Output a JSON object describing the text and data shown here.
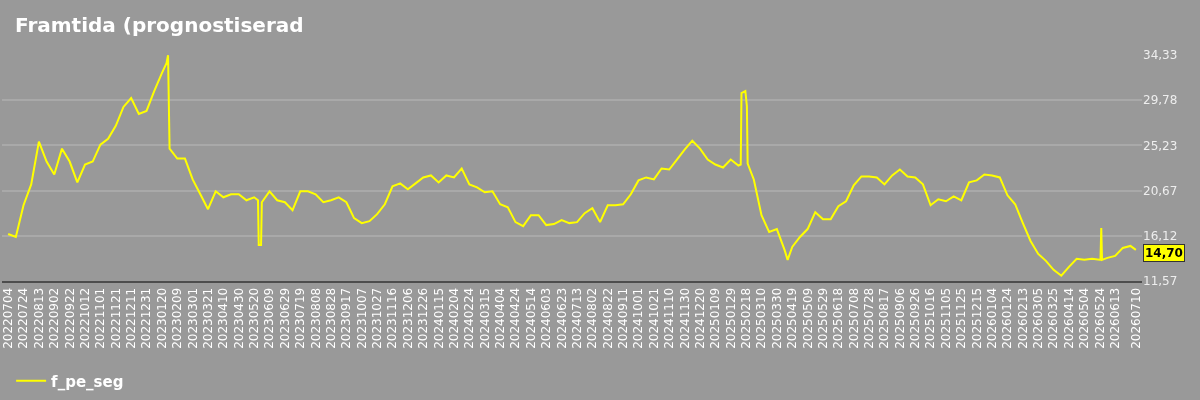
{
  "chart_data": {
    "type": "line",
    "title": "Framtida (prognostiserad",
    "x": [
      "2022-07-04",
      "2022-07-14",
      "2022-07-24",
      "2022-08-03",
      "2022-08-13",
      "2022-08-23",
      "2022-09-02",
      "2022-09-12",
      "2022-09-22",
      "2022-10-02",
      "2022-10-12",
      "2022-10-22",
      "2022-11-01",
      "2022-11-11",
      "2022-11-21",
      "2022-12-01",
      "2022-12-11",
      "2022-12-21",
      "2022-12-31",
      "2023-01-10",
      "2023-01-20",
      "2023-01-26",
      "2023-01-28",
      "2023-01-30",
      "2023-02-09",
      "2023-02-19",
      "2023-03-01",
      "2023-03-11",
      "2023-03-21",
      "2023-03-31",
      "2023-04-10",
      "2023-04-20",
      "2023-04-30",
      "2023-05-10",
      "2023-05-20",
      "2023-05-25",
      "2023-05-26",
      "2023-05-29",
      "2023-05-30",
      "2023-06-09",
      "2023-06-19",
      "2023-06-29",
      "2023-07-09",
      "2023-07-19",
      "2023-07-29",
      "2023-08-08",
      "2023-08-18",
      "2023-08-28",
      "2023-09-07",
      "2023-09-17",
      "2023-09-27",
      "2023-10-07",
      "2023-10-17",
      "2023-10-27",
      "2023-11-06",
      "2023-11-16",
      "2023-11-26",
      "2023-12-06",
      "2023-12-16",
      "2023-12-26",
      "2024-01-05",
      "2024-01-15",
      "2024-01-25",
      "2024-02-04",
      "2024-02-14",
      "2024-02-24",
      "2024-03-05",
      "2024-03-15",
      "2024-03-25",
      "2024-04-04",
      "2024-04-14",
      "2024-04-24",
      "2024-05-04",
      "2024-05-14",
      "2024-05-24",
      "2024-06-03",
      "2024-06-13",
      "2024-06-23",
      "2024-07-03",
      "2024-07-13",
      "2024-07-23",
      "2024-08-02",
      "2024-08-12",
      "2024-08-22",
      "2024-09-01",
      "2024-09-11",
      "2024-09-21",
      "2024-10-01",
      "2024-10-11",
      "2024-10-21",
      "2024-10-31",
      "2024-11-10",
      "2024-11-20",
      "2024-11-30",
      "2024-12-10",
      "2024-12-20",
      "2024-12-30",
      "2025-01-09",
      "2025-01-19",
      "2025-01-29",
      "2025-02-08",
      "2025-02-11",
      "2025-02-12",
      "2025-02-17",
      "2025-02-19",
      "2025-02-20",
      "2025-02-28",
      "2025-03-10",
      "2025-03-20",
      "2025-03-30",
      "2025-04-09",
      "2025-04-13",
      "2025-04-19",
      "2025-04-29",
      "2025-05-09",
      "2025-05-19",
      "2025-05-29",
      "2025-06-08",
      "2025-06-18",
      "2025-06-28",
      "2025-07-08",
      "2025-07-18",
      "2025-07-28",
      "2025-08-07",
      "2025-08-17",
      "2025-08-27",
      "2025-09-06",
      "2025-09-16",
      "2025-09-26",
      "2025-10-06",
      "2025-10-16",
      "2025-10-26",
      "2025-11-05",
      "2025-11-15",
      "2025-11-25",
      "2025-12-05",
      "2025-12-15",
      "2025-12-25",
      "2026-01-04",
      "2026-01-14",
      "2026-01-24",
      "2026-02-03",
      "2026-02-13",
      "2026-02-23",
      "2026-03-05",
      "2026-03-15",
      "2026-03-25",
      "2026-04-04",
      "2026-04-14",
      "2026-04-24",
      "2026-05-04",
      "2026-05-14",
      "2026-05-24",
      "2026-05-25",
      "2026-05-26",
      "2026-05-27",
      "2026-06-03",
      "2026-06-13",
      "2026-06-23",
      "2026-07-03",
      "2026-07-10"
    ],
    "series": [
      {
        "name": "f_pe_seg",
        "color": "#ffff00",
        "values": [
          16.3,
          16.0,
          19.2,
          21.3,
          25.6,
          23.6,
          22.3,
          24.9,
          23.6,
          21.5,
          23.3,
          23.6,
          25.3,
          25.9,
          27.2,
          29.1,
          30.0,
          28.4,
          28.7,
          30.7,
          32.5,
          33.5,
          34.3,
          24.9,
          23.9,
          23.9,
          21.8,
          20.3,
          18.8,
          20.6,
          20.0,
          20.3,
          20.3,
          19.7,
          20.0,
          19.7,
          15.2,
          15.2,
          19.5,
          20.6,
          19.7,
          19.5,
          18.7,
          20.6,
          20.6,
          20.3,
          19.5,
          19.7,
          20.0,
          19.5,
          17.9,
          17.4,
          17.6,
          18.3,
          19.3,
          21.1,
          21.4,
          20.8,
          21.4,
          22.0,
          22.2,
          21.5,
          22.2,
          22.0,
          22.9,
          21.3,
          21.0,
          20.5,
          20.6,
          19.3,
          19.0,
          17.5,
          17.1,
          18.2,
          18.2,
          17.2,
          17.3,
          17.7,
          17.4,
          17.5,
          18.4,
          18.9,
          17.5,
          19.2,
          19.2,
          19.3,
          20.3,
          21.7,
          22.0,
          21.8,
          22.9,
          22.8,
          23.8,
          24.8,
          25.7,
          24.9,
          23.8,
          23.3,
          23.0,
          23.8,
          23.2,
          23.3,
          30.5,
          30.7,
          29.2,
          23.4,
          21.8,
          18.2,
          16.5,
          16.8,
          14.7,
          13.7,
          15.0,
          16.0,
          16.8,
          18.5,
          17.8,
          17.8,
          19.1,
          19.6,
          21.2,
          22.1,
          22.1,
          22.0,
          21.3,
          22.2,
          22.8,
          22.1,
          22.0,
          21.3,
          19.2,
          19.8,
          19.6,
          20.1,
          19.7,
          21.5,
          21.7,
          22.3,
          22.2,
          22.0,
          20.2,
          19.3,
          17.4,
          15.6,
          14.3,
          13.6,
          12.7,
          12.1,
          13.0,
          13.8,
          13.7,
          13.8,
          13.7,
          13.7,
          16.9,
          13.7,
          13.9,
          14.1,
          14.9,
          15.1,
          14.7
        ]
      }
    ],
    "xlim": [
      "2022-06-26",
      "2026-07-18"
    ],
    "xticks": [
      {
        "value": "2022-07-04",
        "label": "20220704"
      },
      {
        "value": "2022-07-24",
        "label": "20220724"
      },
      {
        "value": "2022-08-13",
        "label": "20220813"
      },
      {
        "value": "2022-09-02",
        "label": "20220902"
      },
      {
        "value": "2022-09-22",
        "label": "20220922"
      },
      {
        "value": "2022-10-12",
        "label": "20221012"
      },
      {
        "value": "2022-11-01",
        "label": "20221101"
      },
      {
        "value": "2022-11-21",
        "label": "20221121"
      },
      {
        "value": "2022-12-11",
        "label": "20221211"
      },
      {
        "value": "2022-12-31",
        "label": "20221231"
      },
      {
        "value": "2023-01-20",
        "label": "20230120"
      },
      {
        "value": "2023-02-09",
        "label": "20230209"
      },
      {
        "value": "2023-03-01",
        "label": "20230301"
      },
      {
        "value": "2023-03-21",
        "label": "20230321"
      },
      {
        "value": "2023-04-10",
        "label": "20230410"
      },
      {
        "value": "2023-04-30",
        "label": "20230430"
      },
      {
        "value": "2023-05-20",
        "label": "20230520"
      },
      {
        "value": "2023-06-09",
        "label": "20230609"
      },
      {
        "value": "2023-06-29",
        "label": "20230629"
      },
      {
        "value": "2023-07-19",
        "label": "20230719"
      },
      {
        "value": "2023-08-08",
        "label": "20230808"
      },
      {
        "value": "2023-08-28",
        "label": "20230828"
      },
      {
        "value": "2023-09-17",
        "label": "20230917"
      },
      {
        "value": "2023-10-07",
        "label": "20231007"
      },
      {
        "value": "2023-10-27",
        "label": "20231027"
      },
      {
        "value": "2023-11-16",
        "label": "20231116"
      },
      {
        "value": "2023-12-06",
        "label": "20231206"
      },
      {
        "value": "2023-12-26",
        "label": "20231226"
      },
      {
        "value": "2024-01-15",
        "label": "20240115"
      },
      {
        "value": "2024-02-04",
        "label": "20240204"
      },
      {
        "value": "2024-02-24",
        "label": "20240224"
      },
      {
        "value": "2024-03-15",
        "label": "20240315"
      },
      {
        "value": "2024-04-04",
        "label": "20240404"
      },
      {
        "value": "2024-04-24",
        "label": "20240424"
      },
      {
        "value": "2024-05-14",
        "label": "20240514"
      },
      {
        "value": "2024-06-03",
        "label": "20240603"
      },
      {
        "value": "2024-06-23",
        "label": "20240623"
      },
      {
        "value": "2024-07-13",
        "label": "20240713"
      },
      {
        "value": "2024-08-02",
        "label": "20240802"
      },
      {
        "value": "2024-08-22",
        "label": "20240822"
      },
      {
        "value": "2024-09-11",
        "label": "20240911"
      },
      {
        "value": "2024-10-01",
        "label": "20241001"
      },
      {
        "value": "2024-10-21",
        "label": "20241021"
      },
      {
        "value": "2024-11-10",
        "label": "20241110"
      },
      {
        "value": "2024-11-30",
        "label": "20241130"
      },
      {
        "value": "2024-12-20",
        "label": "20241220"
      },
      {
        "value": "2025-01-09",
        "label": "20250109"
      },
      {
        "value": "2025-01-29",
        "label": "20250129"
      },
      {
        "value": "2025-02-18",
        "label": "20250218"
      },
      {
        "value": "2025-03-10",
        "label": "20250310"
      },
      {
        "value": "2025-03-30",
        "label": "20250330"
      },
      {
        "value": "2025-04-19",
        "label": "20250419"
      },
      {
        "value": "2025-05-09",
        "label": "20250509"
      },
      {
        "value": "2025-05-29",
        "label": "20250529"
      },
      {
        "value": "2025-06-18",
        "label": "20250618"
      },
      {
        "value": "2025-07-08",
        "label": "20250708"
      },
      {
        "value": "2025-07-28",
        "label": "20250728"
      },
      {
        "value": "2025-08-17",
        "label": "20250817"
      },
      {
        "value": "2025-09-06",
        "label": "20250906"
      },
      {
        "value": "2025-09-26",
        "label": "20250926"
      },
      {
        "value": "2025-10-16",
        "label": "20251016"
      },
      {
        "value": "2025-11-05",
        "label": "20251105"
      },
      {
        "value": "2025-11-25",
        "label": "20251125"
      },
      {
        "value": "2025-12-15",
        "label": "20251215"
      },
      {
        "value": "2026-01-04",
        "label": "20260104"
      },
      {
        "value": "2026-01-24",
        "label": "20260124"
      },
      {
        "value": "2026-02-13",
        "label": "20260213"
      },
      {
        "value": "2026-03-05",
        "label": "20260305"
      },
      {
        "value": "2026-03-25",
        "label": "20260325"
      },
      {
        "value": "2026-04-14",
        "label": "20260414"
      },
      {
        "value": "2026-05-04",
        "label": "20260504"
      },
      {
        "value": "2026-05-24",
        "label": "20260524"
      },
      {
        "value": "2026-06-13",
        "label": "20260613"
      },
      {
        "value": "2026-07-10",
        "label": "20260710"
      }
    ],
    "ylim": [
      11.57,
      34.33
    ],
    "yticks": [
      {
        "value": 11.57,
        "label": "11,57"
      },
      {
        "value": 16.12,
        "label": "16,12"
      },
      {
        "value": 20.67,
        "label": "20,67"
      },
      {
        "value": 25.23,
        "label": "25,23"
      },
      {
        "value": 29.78,
        "label": "29,78"
      },
      {
        "value": 34.33,
        "label": "34,33"
      }
    ],
    "grid": "y",
    "legend": "bottom left",
    "annotations": [
      {
        "text": "14,70",
        "x": "2026-07-10",
        "y": 14.7
      }
    ]
  }
}
